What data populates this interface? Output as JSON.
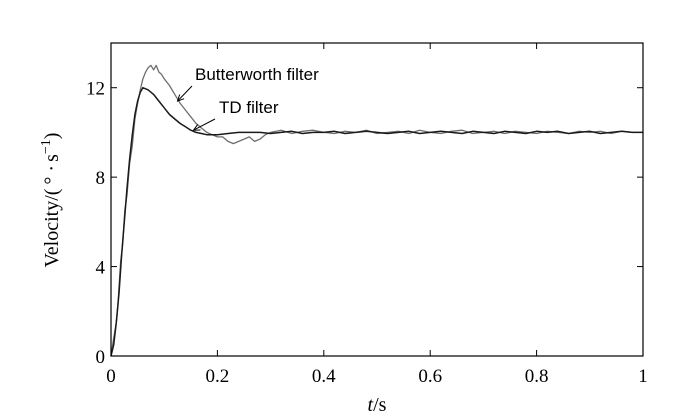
{
  "chart_data": {
    "type": "line",
    "xlim": [
      0,
      1
    ],
    "ylim": [
      0,
      14
    ],
    "xticks": [
      0,
      0.2,
      0.4,
      0.6,
      0.8,
      1
    ],
    "xtick_labels": [
      "0",
      "0.2",
      "0.4",
      "0.6",
      "0.8",
      "1"
    ],
    "yticks": [
      0,
      4,
      8,
      12
    ],
    "ytick_labels": [
      "0",
      "4",
      "8",
      "12"
    ],
    "xlabel_italic": "t",
    "xlabel_rest": "/s",
    "ylabel_text": "Velocity/(",
    "ylabel_deg": "°",
    "ylabel_dot": "·",
    "ylabel_s": "s",
    "ylabel_exp": "−1",
    "ylabel_close": ")",
    "grid": false,
    "series": [
      {
        "name": "Butterworth filter",
        "color": "#6e6e6e",
        "points": [
          [
            0.0,
            0.0
          ],
          [
            0.005,
            0.8
          ],
          [
            0.01,
            1.5
          ],
          [
            0.013,
            2.3
          ],
          [
            0.018,
            4.2
          ],
          [
            0.022,
            5.0
          ],
          [
            0.026,
            6.5
          ],
          [
            0.03,
            7.2
          ],
          [
            0.035,
            8.6
          ],
          [
            0.04,
            9.4
          ],
          [
            0.045,
            10.6
          ],
          [
            0.05,
            11.3
          ],
          [
            0.055,
            11.9
          ],
          [
            0.06,
            12.4
          ],
          [
            0.065,
            12.7
          ],
          [
            0.07,
            12.9
          ],
          [
            0.075,
            13.0
          ],
          [
            0.08,
            12.8
          ],
          [
            0.085,
            13.0
          ],
          [
            0.09,
            12.7
          ],
          [
            0.095,
            12.6
          ],
          [
            0.1,
            12.4
          ],
          [
            0.11,
            12.1
          ],
          [
            0.12,
            11.7
          ],
          [
            0.13,
            11.3
          ],
          [
            0.14,
            11.0
          ],
          [
            0.15,
            10.7
          ],
          [
            0.16,
            10.4
          ],
          [
            0.17,
            10.2
          ],
          [
            0.18,
            10.0
          ],
          [
            0.19,
            9.9
          ],
          [
            0.2,
            9.8
          ],
          [
            0.21,
            9.8
          ],
          [
            0.22,
            9.6
          ],
          [
            0.23,
            9.5
          ],
          [
            0.24,
            9.6
          ],
          [
            0.25,
            9.7
          ],
          [
            0.26,
            9.8
          ],
          [
            0.27,
            9.6
          ],
          [
            0.28,
            9.7
          ],
          [
            0.29,
            9.9
          ],
          [
            0.3,
            10.0
          ],
          [
            0.32,
            10.1
          ],
          [
            0.34,
            9.95
          ],
          [
            0.36,
            10.05
          ],
          [
            0.38,
            10.1
          ],
          [
            0.4,
            10.0
          ],
          [
            0.42,
            9.95
          ],
          [
            0.44,
            10.05
          ],
          [
            0.46,
            10.0
          ],
          [
            0.48,
            10.1
          ],
          [
            0.5,
            9.95
          ],
          [
            0.52,
            10.0
          ],
          [
            0.54,
            10.05
          ],
          [
            0.56,
            9.95
          ],
          [
            0.58,
            10.1
          ],
          [
            0.6,
            10.0
          ],
          [
            0.62,
            9.95
          ],
          [
            0.64,
            10.05
          ],
          [
            0.66,
            10.1
          ],
          [
            0.68,
            9.95
          ],
          [
            0.7,
            10.0
          ],
          [
            0.72,
            10.05
          ],
          [
            0.74,
            9.95
          ],
          [
            0.76,
            10.05
          ],
          [
            0.78,
            10.0
          ],
          [
            0.8,
            9.95
          ],
          [
            0.82,
            10.05
          ],
          [
            0.84,
            10.0
          ],
          [
            0.86,
            9.95
          ],
          [
            0.88,
            10.05
          ],
          [
            0.9,
            10.0
          ],
          [
            0.92,
            10.05
          ],
          [
            0.94,
            9.95
          ],
          [
            0.96,
            10.05
          ],
          [
            0.98,
            10.0
          ],
          [
            1.0,
            10.0
          ]
        ]
      },
      {
        "name": "TD filter",
        "color": "#1a1a1a",
        "points": [
          [
            0.0,
            0.0
          ],
          [
            0.005,
            0.5
          ],
          [
            0.01,
            1.5
          ],
          [
            0.015,
            2.8
          ],
          [
            0.02,
            4.5
          ],
          [
            0.025,
            6.0
          ],
          [
            0.03,
            7.5
          ],
          [
            0.035,
            8.8
          ],
          [
            0.04,
            9.9
          ],
          [
            0.045,
            10.8
          ],
          [
            0.05,
            11.4
          ],
          [
            0.055,
            11.8
          ],
          [
            0.06,
            12.0
          ],
          [
            0.065,
            11.95
          ],
          [
            0.07,
            11.9
          ],
          [
            0.08,
            11.7
          ],
          [
            0.09,
            11.4
          ],
          [
            0.1,
            11.1
          ],
          [
            0.11,
            10.8
          ],
          [
            0.12,
            10.6
          ],
          [
            0.13,
            10.4
          ],
          [
            0.14,
            10.25
          ],
          [
            0.15,
            10.1
          ],
          [
            0.16,
            10.0
          ],
          [
            0.17,
            9.95
          ],
          [
            0.18,
            9.9
          ],
          [
            0.2,
            9.9
          ],
          [
            0.22,
            9.95
          ],
          [
            0.24,
            10.0
          ],
          [
            0.26,
            10.0
          ],
          [
            0.28,
            10.0
          ],
          [
            0.3,
            9.95
          ],
          [
            0.32,
            10.0
          ],
          [
            0.34,
            10.05
          ],
          [
            0.36,
            9.95
          ],
          [
            0.38,
            10.0
          ],
          [
            0.4,
            10.0
          ],
          [
            0.42,
            10.05
          ],
          [
            0.44,
            9.95
          ],
          [
            0.46,
            10.0
          ],
          [
            0.48,
            10.05
          ],
          [
            0.5,
            10.0
          ],
          [
            0.52,
            9.95
          ],
          [
            0.54,
            10.0
          ],
          [
            0.56,
            10.05
          ],
          [
            0.58,
            9.95
          ],
          [
            0.6,
            10.0
          ],
          [
            0.62,
            10.05
          ],
          [
            0.64,
            10.0
          ],
          [
            0.66,
            9.95
          ],
          [
            0.68,
            10.05
          ],
          [
            0.7,
            10.0
          ],
          [
            0.72,
            9.95
          ],
          [
            0.74,
            10.05
          ],
          [
            0.76,
            10.0
          ],
          [
            0.78,
            9.95
          ],
          [
            0.8,
            10.05
          ],
          [
            0.82,
            10.0
          ],
          [
            0.84,
            10.05
          ],
          [
            0.86,
            9.95
          ],
          [
            0.88,
            10.0
          ],
          [
            0.9,
            10.05
          ],
          [
            0.92,
            9.95
          ],
          [
            0.94,
            10.0
          ],
          [
            0.96,
            10.05
          ],
          [
            0.98,
            10.0
          ],
          [
            1.0,
            10.0
          ]
        ]
      }
    ],
    "annotations": [
      {
        "text": "Butterworth filter",
        "series": "Butterworth filter",
        "target": [
          0.125,
          11.4
        ]
      },
      {
        "text": "TD filter",
        "series": "TD filter",
        "target": [
          0.155,
          10.1
        ]
      }
    ]
  }
}
